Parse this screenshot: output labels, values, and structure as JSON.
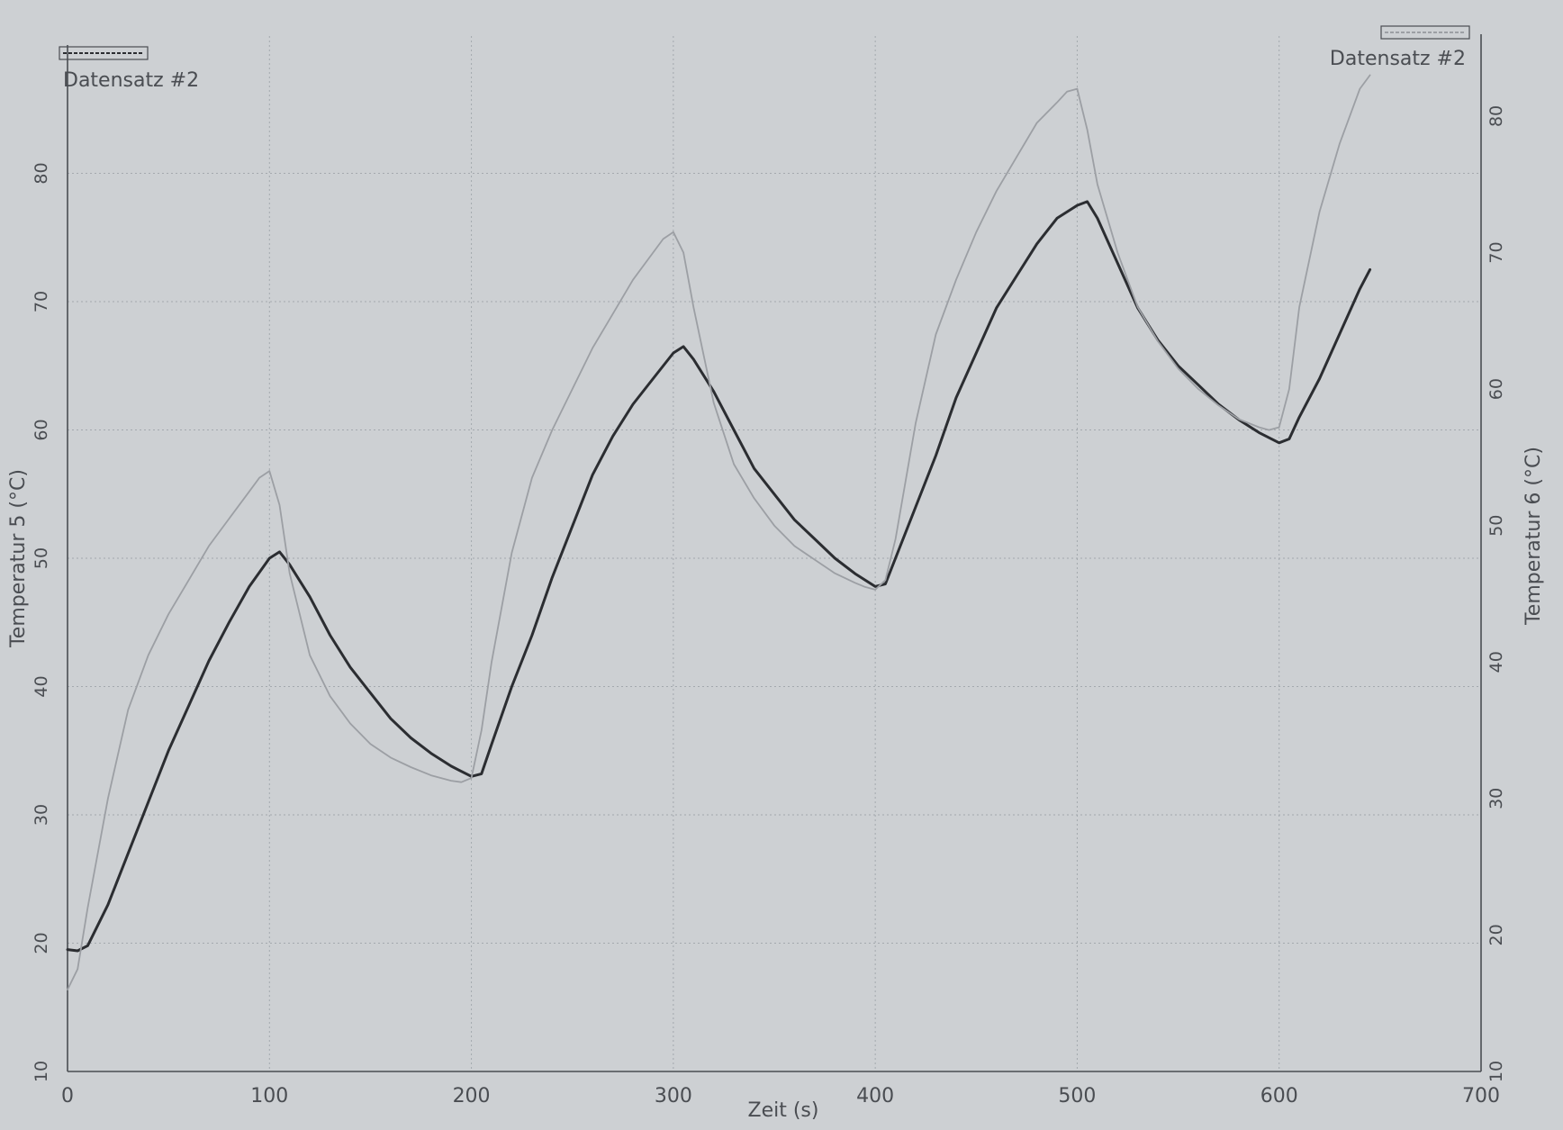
{
  "chart_data": {
    "type": "line",
    "title": "",
    "xlabel": "Zeit (s)",
    "ylabel_left": "Temperatur 5 (°C)",
    "ylabel_right": "Temperatur 6 (°C)",
    "xlim": [
      0,
      700
    ],
    "ylim_left": [
      10,
      90
    ],
    "ylim_right": [
      10,
      86
    ],
    "x_ticks": [
      0,
      100,
      200,
      300,
      400,
      500,
      600,
      700
    ],
    "y_ticks_left": [
      10,
      20,
      30,
      40,
      50,
      60,
      70,
      80
    ],
    "y_ticks_right": [
      10,
      20,
      30,
      40,
      50,
      60,
      70,
      80
    ],
    "grid": true,
    "legend": {
      "left": {
        "placement": "top-left",
        "label": "Datensatz #2"
      },
      "right": {
        "placement": "top-right",
        "label": "Datensatz #2"
      }
    },
    "series": [
      {
        "axis": "left",
        "color": "#2b2d31",
        "x": [
          0,
          5,
          10,
          20,
          30,
          40,
          50,
          60,
          70,
          80,
          90,
          100,
          105,
          110,
          120,
          130,
          140,
          150,
          160,
          170,
          180,
          190,
          200,
          205,
          210,
          220,
          230,
          240,
          250,
          260,
          270,
          280,
          290,
          300,
          305,
          310,
          320,
          330,
          340,
          350,
          360,
          370,
          380,
          390,
          400,
          405,
          410,
          420,
          430,
          440,
          450,
          460,
          470,
          480,
          490,
          500,
          505,
          510,
          520,
          530,
          540,
          550,
          560,
          570,
          580,
          590,
          600,
          605,
          610,
          620,
          630,
          640,
          645
        ],
        "y": [
          19.5,
          19.4,
          19.8,
          23.0,
          27.0,
          31.0,
          35.0,
          38.5,
          42.0,
          45.0,
          47.8,
          50.0,
          50.5,
          49.5,
          47.0,
          44.0,
          41.5,
          39.5,
          37.5,
          36.0,
          34.8,
          33.8,
          33.0,
          33.2,
          35.5,
          40.0,
          44.0,
          48.5,
          52.5,
          56.5,
          59.5,
          62.0,
          64.0,
          66.0,
          66.5,
          65.5,
          63.0,
          60.0,
          57.0,
          55.0,
          53.0,
          51.5,
          50.0,
          48.8,
          47.8,
          48.0,
          50.0,
          54.0,
          58.0,
          62.5,
          66.0,
          69.5,
          72.0,
          74.5,
          76.5,
          77.5,
          77.8,
          76.5,
          73.0,
          69.5,
          67.0,
          65.0,
          63.5,
          62.0,
          60.8,
          59.8,
          59.0,
          59.3,
          61.0,
          64.0,
          67.5,
          71.0,
          72.5
        ]
      },
      {
        "axis": "right",
        "color": "#9c9fa4",
        "x": [
          0,
          5,
          10,
          20,
          30,
          40,
          50,
          60,
          70,
          80,
          90,
          95,
          100,
          105,
          110,
          120,
          130,
          140,
          150,
          160,
          170,
          180,
          190,
          195,
          200,
          205,
          210,
          220,
          230,
          240,
          250,
          260,
          270,
          280,
          290,
          295,
          300,
          305,
          310,
          320,
          330,
          340,
          350,
          360,
          370,
          380,
          390,
          395,
          400,
          405,
          410,
          420,
          430,
          440,
          450,
          460,
          470,
          480,
          490,
          495,
          500,
          505,
          510,
          520,
          530,
          540,
          550,
          560,
          570,
          580,
          590,
          595,
          600,
          605,
          610,
          620,
          630,
          640,
          645
        ],
        "y": [
          16.0,
          17.5,
          22.0,
          30.0,
          36.5,
          40.5,
          43.5,
          46.0,
          48.5,
          50.5,
          52.5,
          53.5,
          54.0,
          51.5,
          46.5,
          40.5,
          37.5,
          35.5,
          34.0,
          33.0,
          32.3,
          31.7,
          31.3,
          31.2,
          31.5,
          35.0,
          40.0,
          48.0,
          53.5,
          57.0,
          60.0,
          63.0,
          65.5,
          68.0,
          70.0,
          71.0,
          71.5,
          70.0,
          66.0,
          59.0,
          54.5,
          52.0,
          50.0,
          48.5,
          47.5,
          46.5,
          45.8,
          45.5,
          45.3,
          46.0,
          49.0,
          57.5,
          64.0,
          68.0,
          71.5,
          74.5,
          77.0,
          79.5,
          81.0,
          81.8,
          82.0,
          79.0,
          75.0,
          70.0,
          66.0,
          63.5,
          61.5,
          60.0,
          58.8,
          57.8,
          57.2,
          57.0,
          57.2,
          60.0,
          66.0,
          73.0,
          78.0,
          82.0,
          83.0
        ]
      }
    ]
  }
}
